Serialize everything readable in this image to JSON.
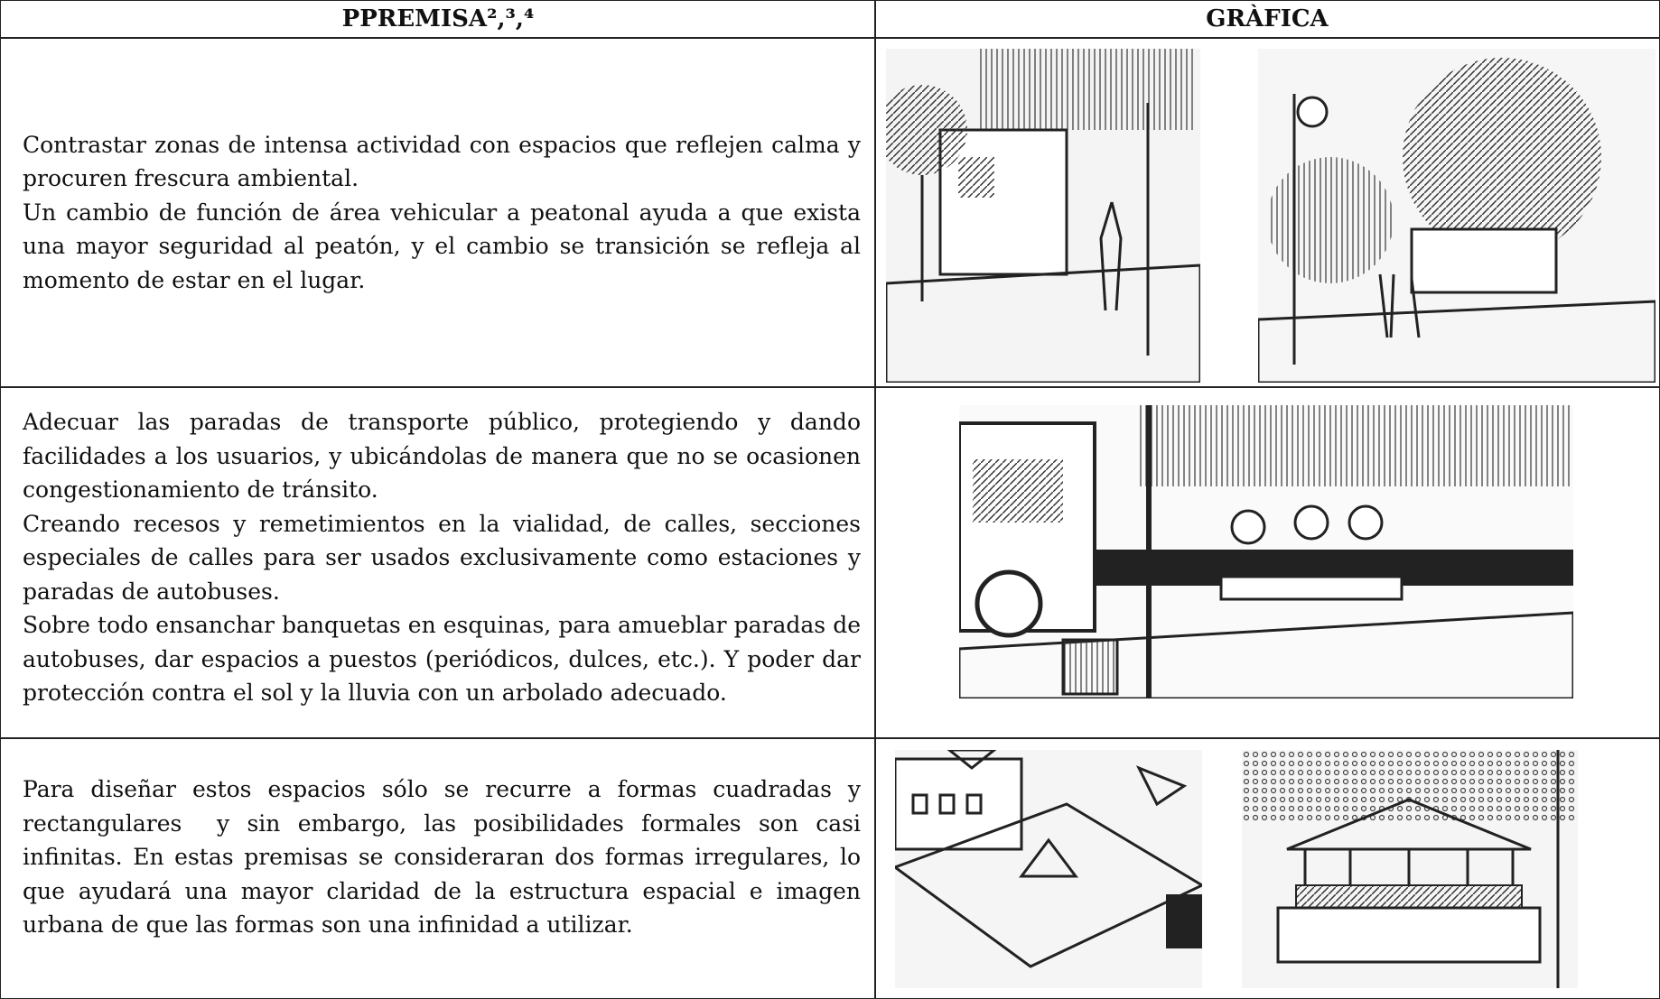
{
  "table": {
    "header": [
      "PPREMISA²,³,⁴",
      "GRÀFICA"
    ],
    "rows": [
      {
        "text": [
          "Contrastar zonas de intensa actividad con espacios que reflejen calma y procuren frescura ambiental.",
          "Un cambio de función de área vehicular a peatonal ayuda a que exista una mayor seguridad al peatón, y el cambio se transición se refleja al momento de estar en el lugar."
        ]
      },
      {
        "text": [
          "Adecuar las paradas de transporte público, protegiendo y dando facilidades a los usuarios, y ubicándolas de manera que no se ocasionen congestionamiento de tránsito.",
          "Creando recesos y remetimientos en la vialidad, de calles, secciones especiales de calles para ser usados exclusivamente como estaciones y paradas de autobuses.",
          "Sobre todo ensanchar banquetas en esquinas, para amueblar paradas de autobuses, dar espacios a puestos (periódicos, dulces, etc.). Y poder dar protección contra el sol y la lluvia con un arbolado adecuado."
        ]
      },
      {
        "text": [
          "Para diseñar estos espacios sólo se recurre a formas cuadradas y rectangulares  y sin embargo, las posibilidades formales son casi infinitas. En estas premisas se consideraran dos formas irregulares, lo que ayudará una mayor claridad de la estructura espacial e imagen urbana de que las formas son una infinidad a utilizar."
        ]
      }
    ]
  }
}
